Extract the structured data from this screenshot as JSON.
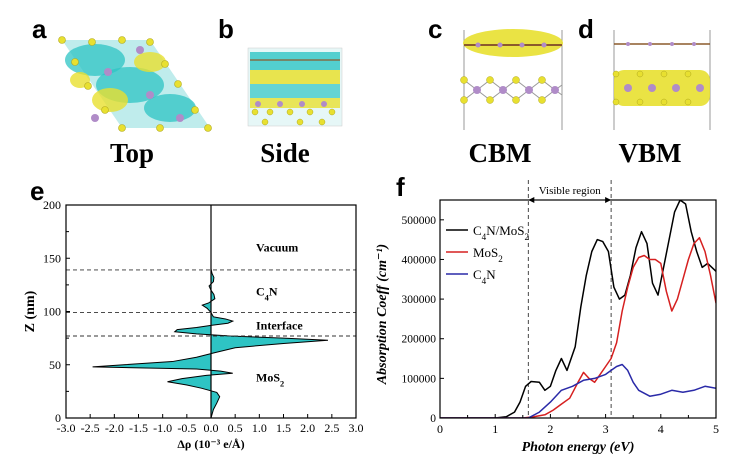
{
  "panels": {
    "a": {
      "letter": "a",
      "caption": "Top"
    },
    "b": {
      "letter": "b",
      "caption": "Side"
    },
    "c": {
      "letter": "c",
      "caption": "CBM"
    },
    "d": {
      "letter": "d",
      "caption": "VBM"
    },
    "e": {
      "letter": "e"
    },
    "f": {
      "letter": "f"
    }
  },
  "colors": {
    "cyan": "#2ec4c4",
    "yellow": "#e8e030",
    "purple": "#b08cc8",
    "brown": "#8b5a2b",
    "black_series": "#000000",
    "red_series": "#d62020",
    "blue_series": "#2a2aa8"
  },
  "chart_data": [
    {
      "type": "area",
      "panel": "e",
      "xlabel": "Δρ (10⁻³ e/Å)",
      "ylabel": "Z (nm)",
      "xlim": [
        -3.0,
        3.0
      ],
      "ylim": [
        0,
        200
      ],
      "xticks": [
        "-3.0",
        "-2.5",
        "-2.0",
        "-1.5",
        "-1.0",
        "-0.5",
        "0.0",
        "0.5",
        "1.0",
        "1.5",
        "2.0",
        "2.5",
        "3.0"
      ],
      "yticks": [
        "0",
        "50",
        "100",
        "150",
        "200"
      ],
      "dashed_lines_z": [
        139,
        99,
        77
      ],
      "region_labels": [
        {
          "text": "Vacuum",
          "z": 160
        },
        {
          "text": "C",
          "sub": "4",
          "rest": "N",
          "z": 119
        },
        {
          "text": "Interface",
          "z": 87
        },
        {
          "text": "MoS",
          "sub": "2",
          "rest": "",
          "z": 38
        }
      ],
      "profile": [
        [
          0,
          0.0
        ],
        [
          8,
          0.05
        ],
        [
          14,
          0.12
        ],
        [
          20,
          0.18
        ],
        [
          24,
          0.12
        ],
        [
          28,
          -0.2
        ],
        [
          31,
          -0.5
        ],
        [
          34,
          -0.9
        ],
        [
          37,
          -0.6
        ],
        [
          40,
          -0.1
        ],
        [
          42,
          0.45
        ],
        [
          44,
          0.2
        ],
        [
          46,
          -0.3
        ],
        [
          48,
          -2.45
        ],
        [
          50,
          -1.8
        ],
        [
          53,
          -0.8
        ],
        [
          57,
          -0.3
        ],
        [
          61,
          0.05
        ],
        [
          66,
          0.5
        ],
        [
          70,
          1.5
        ],
        [
          73,
          2.42
        ],
        [
          75,
          1.5
        ],
        [
          77,
          0.4
        ],
        [
          79,
          -0.3
        ],
        [
          81,
          -0.75
        ],
        [
          83,
          -0.7
        ],
        [
          85,
          -0.3
        ],
        [
          87,
          0.0
        ],
        [
          89,
          0.35
        ],
        [
          91,
          0.45
        ],
        [
          93,
          0.3
        ],
        [
          95,
          0.05
        ],
        [
          99,
          0.0
        ],
        [
          103,
          -0.08
        ],
        [
          106,
          -0.18
        ],
        [
          108,
          -0.05
        ],
        [
          112,
          0.08
        ],
        [
          116,
          0.06
        ],
        [
          120,
          0.0
        ],
        [
          124,
          -0.04
        ],
        [
          128,
          0.05
        ],
        [
          132,
          0.06
        ],
        [
          136,
          0.02
        ],
        [
          140,
          0.0
        ],
        [
          200,
          0.0
        ]
      ]
    },
    {
      "type": "line",
      "panel": "f",
      "xlabel": "Photon energy (eV)",
      "ylabel": "Absorption Coeff (cm⁻¹)",
      "xlim": [
        0,
        5
      ],
      "ylim": [
        0,
        550000
      ],
      "xticks": [
        "0",
        "1",
        "2",
        "3",
        "4",
        "5"
      ],
      "yticks": [
        "0",
        "100000",
        "200000",
        "300000",
        "400000",
        "500000"
      ],
      "visible_region": {
        "label": "Visible region",
        "range": [
          1.6,
          3.1
        ]
      },
      "legend_position": "top-left",
      "series": [
        {
          "name": "C4N/MoS2",
          "label_main": "C",
          "label_sub1": "4",
          "label_mid": "N/MoS",
          "label_sub2": "2",
          "color": "#000000",
          "x": [
            0,
            1.0,
            1.2,
            1.35,
            1.45,
            1.55,
            1.65,
            1.8,
            1.9,
            2.0,
            2.1,
            2.2,
            2.3,
            2.45,
            2.55,
            2.65,
            2.75,
            2.85,
            2.95,
            3.05,
            3.15,
            3.25,
            3.35,
            3.45,
            3.55,
            3.65,
            3.75,
            3.85,
            3.95,
            4.05,
            4.15,
            4.25,
            4.35,
            4.45,
            4.55,
            4.65,
            4.75,
            4.85,
            5.0
          ],
          "y": [
            0,
            0,
            3000,
            15000,
            40000,
            80000,
            92000,
            90000,
            70000,
            80000,
            120000,
            150000,
            120000,
            180000,
            280000,
            360000,
            420000,
            450000,
            445000,
            420000,
            330000,
            300000,
            310000,
            360000,
            430000,
            470000,
            440000,
            340000,
            310000,
            380000,
            450000,
            520000,
            550000,
            540000,
            470000,
            420000,
            380000,
            390000,
            370000
          ]
        },
        {
          "name": "MoS2",
          "label_main": "MoS",
          "label_sub1": "2",
          "label_mid": "",
          "label_sub2": "",
          "color": "#d62020",
          "x": [
            0,
            1.5,
            1.7,
            1.9,
            2.05,
            2.2,
            2.35,
            2.5,
            2.6,
            2.7,
            2.8,
            2.9,
            3.0,
            3.1,
            3.2,
            3.3,
            3.4,
            3.5,
            3.6,
            3.7,
            3.8,
            3.9,
            4.0,
            4.1,
            4.2,
            4.3,
            4.4,
            4.5,
            4.6,
            4.7,
            4.8,
            4.9,
            5.0
          ],
          "y": [
            0,
            0,
            3000,
            8000,
            20000,
            35000,
            50000,
            90000,
            115000,
            100000,
            90000,
            110000,
            130000,
            150000,
            190000,
            270000,
            330000,
            380000,
            405000,
            410000,
            400000,
            400000,
            390000,
            320000,
            270000,
            300000,
            350000,
            400000,
            440000,
            455000,
            420000,
            360000,
            290000
          ]
        },
        {
          "name": "C4N",
          "label_main": "C",
          "label_sub1": "4",
          "label_mid": "N",
          "label_sub2": "",
          "color": "#2a2aa8",
          "x": [
            0,
            1.6,
            1.8,
            2.0,
            2.2,
            2.4,
            2.6,
            2.8,
            3.0,
            3.1,
            3.2,
            3.3,
            3.4,
            3.5,
            3.6,
            3.8,
            4.0,
            4.2,
            4.4,
            4.6,
            4.8,
            5.0
          ],
          "y": [
            0,
            0,
            15000,
            40000,
            70000,
            80000,
            95000,
            100000,
            110000,
            120000,
            130000,
            135000,
            120000,
            90000,
            70000,
            55000,
            60000,
            70000,
            65000,
            70000,
            80000,
            75000
          ]
        }
      ]
    }
  ]
}
